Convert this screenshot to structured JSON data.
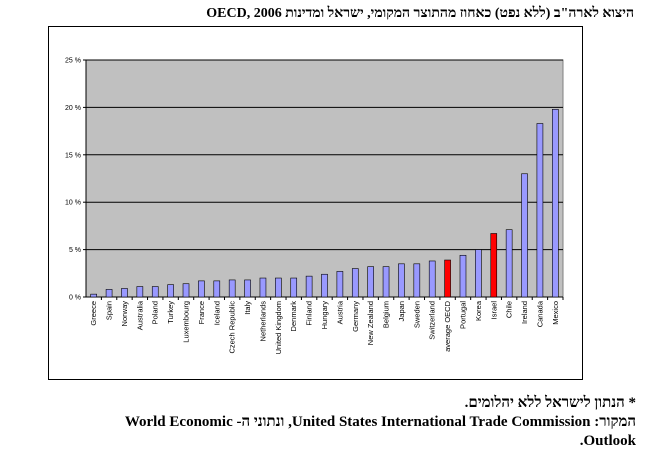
{
  "title": "היצוא לארה\"ב (ללא נפט) כאחוז מהתוצר המקומי, ישראל ומדינות OECD, 2006",
  "notes": {
    "asterisk": "* הנתון לישראל ללא יהלומים.",
    "source_1": "המקור: United States International Trade Commission, ונתוני ה- World Economic",
    "source_2": "Outlook."
  },
  "colors": {
    "bar": "#9999ff",
    "highlight": "#ff0000",
    "plot_bg": "#c0c0c0"
  },
  "chart_data": {
    "type": "bar",
    "title": "היצוא לארה\"ב (ללא נפט) כאחוז מהתוצר המקומי, ישראל ומדינות OECD, 2006",
    "xlabel": "",
    "ylabel": "",
    "ylim": [
      0,
      25
    ],
    "yticks": [
      "0 %",
      "5 %",
      "10 %",
      "15 %",
      "20 %",
      "25 %"
    ],
    "grid": true,
    "categories": [
      "Greece",
      "Spain",
      "Norway",
      "Australia",
      "Poland",
      "Turkey",
      "Luxembourg",
      "France",
      "Iceland",
      "Czech Republic",
      "Italy",
      "Netherlands",
      "United Kingdom",
      "Denmark",
      "Finland",
      "Hungary",
      "Austria",
      "Germany",
      "New Zealand",
      "Belgium",
      "Japan",
      "Sweden",
      "Switzerland",
      "average OECD",
      "Portugal",
      "Korea",
      "Israel",
      "Chile",
      "Ireland",
      "Canada",
      "Mexico"
    ],
    "values": [
      0.3,
      0.8,
      0.9,
      1.1,
      1.1,
      1.3,
      1.4,
      1.7,
      1.7,
      1.8,
      1.8,
      2.0,
      2.0,
      2.0,
      2.2,
      2.4,
      2.7,
      3.0,
      3.2,
      3.2,
      3.5,
      3.5,
      3.8,
      3.9,
      4.4,
      5.0,
      6.7,
      7.1,
      13.0,
      18.3,
      19.8
    ],
    "highlighted": [
      "average OECD",
      "Israel"
    ]
  }
}
